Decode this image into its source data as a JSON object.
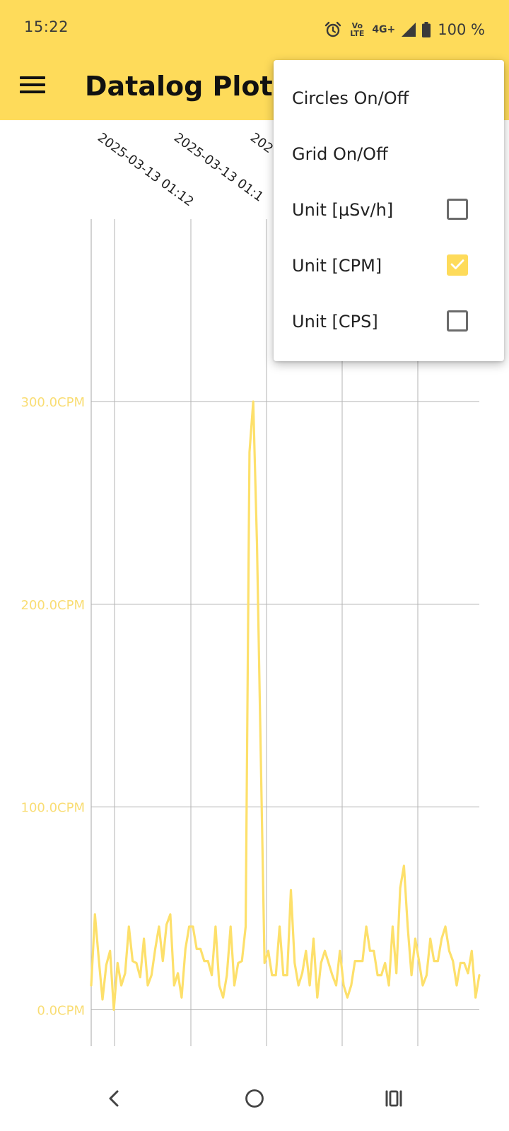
{
  "status_bar": {
    "time": "15:22",
    "net_line1": "Vo LTE",
    "net_type": "4G+",
    "battery": "100 %",
    "icons": [
      "alarm-icon",
      "volte-icon",
      "4g-icon",
      "signal-icon",
      "battery-icon"
    ]
  },
  "app_bar": {
    "title": "Datalog Plot",
    "menu_icon": "hamburger-menu-icon"
  },
  "menu": {
    "items": [
      {
        "label": "Circles On/Off"
      },
      {
        "label": "Grid On/Off"
      },
      {
        "label": "Unit [µSv/h]",
        "checked": false
      },
      {
        "label": "Unit [CPM]",
        "checked": true
      },
      {
        "label": "Unit [CPS]",
        "checked": false
      }
    ]
  },
  "colors": {
    "accent": "#fedb5a",
    "line": "#fde06b",
    "axis_label": "#f9dd74",
    "grid": "#b3b3b3"
  },
  "chart_data": {
    "type": "line",
    "ylim": [
      -18,
      390
    ],
    "y_ticks": [
      0,
      100,
      200,
      300
    ],
    "y_tick_labels": [
      "0.0CPM",
      "100.0CPM",
      "200.0CPM",
      "300.0CPM"
    ],
    "x_tick_labels": [
      "2025-03-13 01:12",
      "2025-03-13 01:1",
      "202"
    ],
    "grid": true,
    "series": [
      {
        "values": [
          12,
          47,
          25,
          5,
          22,
          29,
          0,
          23,
          12,
          18,
          41,
          24,
          23,
          16,
          35,
          12,
          17,
          30,
          41,
          24,
          42,
          47,
          12,
          18,
          6,
          30,
          41,
          41,
          30,
          30,
          24,
          24,
          17,
          41,
          12,
          6,
          17,
          41,
          12,
          23,
          24,
          41,
          275,
          300,
          230,
          125,
          23,
          29,
          17,
          17,
          41,
          17,
          17,
          59,
          23,
          12,
          18,
          29,
          12,
          35,
          6,
          23,
          29,
          23,
          17,
          12,
          29,
          12,
          6,
          12,
          24,
          24,
          24,
          41,
          29,
          29,
          17,
          17,
          23,
          12,
          41,
          18,
          60,
          71,
          41,
          17,
          35,
          24,
          12,
          17,
          35,
          24,
          24,
          35,
          41,
          29,
          24,
          12,
          23,
          23,
          18,
          29,
          6,
          17
        ]
      }
    ]
  },
  "nav_bar": {
    "icons": [
      "back-icon",
      "home-icon",
      "recents-icon"
    ]
  }
}
